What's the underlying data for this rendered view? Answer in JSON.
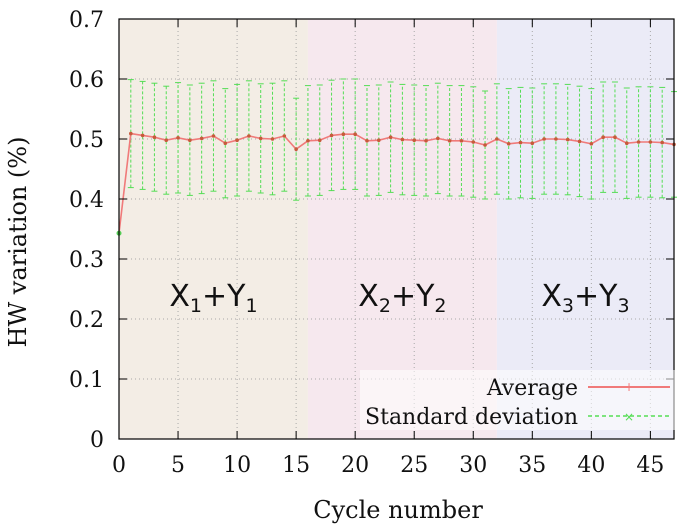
{
  "chart_data": {
    "type": "line",
    "title": "",
    "xlabel": "Cycle number",
    "ylabel": "HW variation (%)",
    "xlim": [
      0,
      47
    ],
    "ylim": [
      0,
      0.7
    ],
    "xticks": [
      0,
      5,
      10,
      15,
      20,
      25,
      30,
      35,
      40,
      45
    ],
    "yticks": [
      0,
      0.1,
      0.2,
      0.3,
      0.4,
      0.5,
      0.6,
      0.7
    ],
    "grid": true,
    "legend_position": "bottom-right",
    "regions": [
      {
        "x": [
          0,
          16
        ],
        "label_main1": "X",
        "label_sub1": "1",
        "label_plus": "+",
        "label_main2": "Y",
        "label_sub2": "1",
        "color": "#f3ede5"
      },
      {
        "x": [
          16,
          32
        ],
        "label_main1": "X",
        "label_sub1": "2",
        "label_plus": "+",
        "label_main2": "Y",
        "label_sub2": "2",
        "color": "#f6e8ee"
      },
      {
        "x": [
          32,
          47
        ],
        "label_main1": "X",
        "label_sub1": "3",
        "label_plus": "+",
        "label_main2": "Y",
        "label_sub2": "3",
        "color": "#ebebf7"
      }
    ],
    "x": [
      0,
      1,
      2,
      3,
      4,
      5,
      6,
      7,
      8,
      9,
      10,
      11,
      12,
      13,
      14,
      15,
      16,
      17,
      18,
      19,
      20,
      21,
      22,
      23,
      24,
      25,
      26,
      27,
      28,
      29,
      30,
      31,
      32,
      33,
      34,
      35,
      36,
      37,
      38,
      39,
      40,
      41,
      42,
      43,
      44,
      45,
      46,
      47
    ],
    "series": [
      {
        "name": "Average",
        "color": "#f07a7a",
        "values": [
          0.343,
          0.509,
          0.506,
          0.503,
          0.498,
          0.502,
          0.498,
          0.501,
          0.505,
          0.493,
          0.498,
          0.505,
          0.501,
          0.5,
          0.505,
          0.483,
          0.497,
          0.498,
          0.506,
          0.508,
          0.508,
          0.497,
          0.498,
          0.503,
          0.499,
          0.498,
          0.497,
          0.501,
          0.497,
          0.497,
          0.495,
          0.49,
          0.5,
          0.492,
          0.494,
          0.493,
          0.5,
          0.5,
          0.499,
          0.496,
          0.492,
          0.503,
          0.503,
          0.493,
          0.495,
          0.495,
          0.494,
          0.491
        ]
      },
      {
        "name": "Standard deviation",
        "color": "#55dd55",
        "lower": [
          0.343,
          0.419,
          0.416,
          0.413,
          0.408,
          0.41,
          0.406,
          0.409,
          0.413,
          0.402,
          0.405,
          0.413,
          0.41,
          0.407,
          0.413,
          0.398,
          0.405,
          0.406,
          0.414,
          0.416,
          0.416,
          0.405,
          0.406,
          0.411,
          0.407,
          0.406,
          0.405,
          0.409,
          0.405,
          0.405,
          0.403,
          0.4,
          0.408,
          0.4,
          0.402,
          0.401,
          0.408,
          0.408,
          0.407,
          0.404,
          0.4,
          0.411,
          0.411,
          0.401,
          0.403,
          0.403,
          0.402,
          0.403
        ],
        "upper": [
          0.343,
          0.599,
          0.596,
          0.593,
          0.588,
          0.594,
          0.59,
          0.593,
          0.597,
          0.584,
          0.591,
          0.597,
          0.592,
          0.593,
          0.597,
          0.568,
          0.589,
          0.59,
          0.598,
          0.6,
          0.6,
          0.589,
          0.59,
          0.595,
          0.591,
          0.59,
          0.589,
          0.593,
          0.589,
          0.589,
          0.587,
          0.58,
          0.592,
          0.584,
          0.586,
          0.585,
          0.592,
          0.592,
          0.591,
          0.588,
          0.584,
          0.595,
          0.595,
          0.585,
          0.587,
          0.587,
          0.586,
          0.579
        ]
      }
    ]
  }
}
